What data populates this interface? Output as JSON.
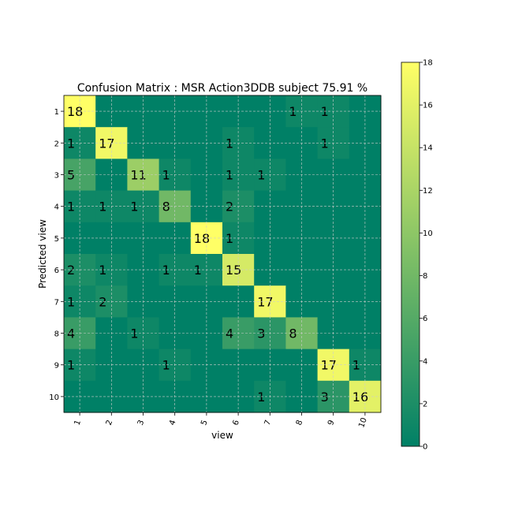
{
  "chart_data": {
    "type": "heatmap",
    "title": "Confusion Matrix : MSR Action3DDB subject  75.91 %",
    "xlabel": "view",
    "ylabel": "Predicted view",
    "row_labels": [
      "1",
      "2",
      "3",
      "4",
      "5",
      "6",
      "7",
      "8",
      "9",
      "10"
    ],
    "col_labels": [
      "1",
      "2",
      "3",
      "4",
      "5",
      "6",
      "7",
      "8",
      "9",
      "10"
    ],
    "matrix": [
      [
        18,
        0,
        0,
        0,
        0,
        0,
        0,
        1,
        1,
        0
      ],
      [
        1,
        17,
        0,
        0,
        0,
        1,
        0,
        0,
        1,
        0
      ],
      [
        5,
        0,
        11,
        1,
        0,
        1,
        1,
        0,
        0,
        0
      ],
      [
        1,
        1,
        1,
        8,
        0,
        2,
        0,
        0,
        0,
        0
      ],
      [
        0,
        0,
        0,
        0,
        18,
        1,
        0,
        0,
        0,
        0
      ],
      [
        2,
        1,
        0,
        1,
        1,
        15,
        0,
        0,
        0,
        0
      ],
      [
        1,
        2,
        0,
        0,
        0,
        0,
        17,
        0,
        0,
        0
      ],
      [
        4,
        0,
        1,
        0,
        0,
        4,
        3,
        8,
        0,
        0
      ],
      [
        1,
        0,
        0,
        1,
        0,
        0,
        0,
        0,
        17,
        1
      ],
      [
        0,
        0,
        0,
        0,
        0,
        0,
        1,
        0,
        3,
        16
      ]
    ],
    "show_zero_labels": false,
    "colormap": "summer",
    "colormap_colors": [
      "#008066",
      "#ffff66"
    ],
    "value_range": [
      0,
      18
    ],
    "colorbar_ticks": [
      0,
      2,
      4,
      6,
      8,
      10,
      12,
      14,
      16,
      18
    ],
    "grid": true,
    "grid_color": "#cccccc"
  }
}
